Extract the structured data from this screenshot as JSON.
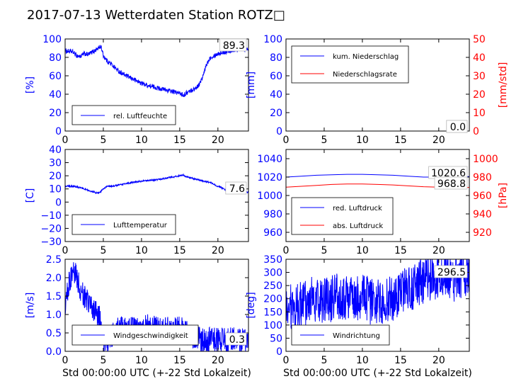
{
  "title": "2017-07-13 Wetterdaten Station ROTZ□",
  "colors": {
    "primary": "#0000ff",
    "secondary": "#ff0000",
    "text": "#000000"
  },
  "chart_data": [
    {
      "type": "line",
      "id": "humidity",
      "xlabel": "",
      "ylabel": "[%]",
      "xlim": [
        0,
        24
      ],
      "ylim": [
        0,
        100
      ],
      "xticks": [
        "0",
        "5",
        "10",
        "15",
        "20"
      ],
      "yticks": [
        "0",
        "20",
        "40",
        "60",
        "80",
        "100"
      ],
      "legend": "bottom-left",
      "value_label": "89.3",
      "noise": 2.5,
      "series": [
        {
          "name": "rel. Luftfeuchte",
          "color": "#0000ff",
          "x": [
            0,
            1,
            1.5,
            2,
            2.5,
            3,
            4,
            4.7,
            5,
            5.5,
            6,
            7,
            8,
            9,
            10,
            11,
            12,
            13,
            14,
            15,
            15.5,
            16,
            16.5,
            17,
            17.5,
            18,
            18.5,
            19,
            20,
            21,
            22,
            23,
            24
          ],
          "y": [
            87,
            86,
            82,
            81,
            84,
            83,
            88,
            92,
            82,
            76,
            73,
            65,
            60,
            56,
            52,
            49,
            47,
            45,
            43,
            41,
            39,
            42,
            44,
            46,
            50,
            58,
            72,
            80,
            84,
            86,
            88,
            89,
            89
          ]
        }
      ]
    },
    {
      "type": "line",
      "id": "precipitation",
      "xlabel": "",
      "ylabel": "[mm]",
      "ylabel_right": "[mm/std]",
      "xlim": [
        0,
        24
      ],
      "ylim": [
        0,
        100
      ],
      "ylim_right": [
        0,
        50
      ],
      "xticks": [
        "0",
        "5",
        "10",
        "15",
        "20"
      ],
      "yticks": [
        "0",
        "20",
        "40",
        "60",
        "80",
        "100"
      ],
      "yticks_right": [
        "0",
        "10",
        "20",
        "30",
        "40",
        "50"
      ],
      "legend": "top-left",
      "value_labels": [
        "0.0",
        "0.0"
      ],
      "series": [
        {
          "name": "kum. Niederschlag",
          "color": "#0000ff",
          "x": [
            0,
            24
          ],
          "y": [
            0,
            0
          ]
        },
        {
          "name": "Niederschlagsrate",
          "color": "#ff0000",
          "axis": "right",
          "x": [
            0,
            24
          ],
          "y": [
            0,
            0
          ]
        }
      ]
    },
    {
      "type": "line",
      "id": "temperature",
      "xlabel": "",
      "ylabel": "[C]",
      "xlim": [
        0,
        24
      ],
      "ylim": [
        -30,
        40
      ],
      "xticks": [
        "0",
        "5",
        "10",
        "15",
        "20"
      ],
      "yticks": [
        "−30",
        "−20",
        "−10",
        "0",
        "10",
        "20",
        "30",
        "40"
      ],
      "legend": "bottom-left",
      "value_label": "7.6",
      "noise": 0.6,
      "series": [
        {
          "name": "Lufttemperatur",
          "color": "#0000ff",
          "x": [
            0,
            1,
            2,
            3,
            4,
            4.5,
            5,
            5.5,
            6,
            7,
            8,
            9,
            10,
            11,
            12,
            13,
            14,
            15,
            15.5,
            16,
            17,
            18,
            19,
            20,
            21,
            22,
            23,
            24
          ],
          "y": [
            12,
            12,
            11,
            9,
            7,
            7,
            10,
            12,
            12,
            13,
            14,
            15,
            16,
            16.5,
            17,
            18,
            19,
            20,
            20.5,
            19,
            17.5,
            16,
            15,
            12,
            9.5,
            8.5,
            8,
            7.6
          ]
        }
      ]
    },
    {
      "type": "line",
      "id": "pressure",
      "xlabel": "",
      "ylabel": "",
      "ylabel_right": "[hPa]",
      "xlim": [
        0,
        24
      ],
      "ylim": [
        950,
        1050
      ],
      "ylim_right": [
        910,
        1010
      ],
      "xticks": [
        "0",
        "5",
        "10",
        "15",
        "20"
      ],
      "yticks": [
        "960",
        "980",
        "1000",
        "1020",
        "1040"
      ],
      "yticks_right": [
        "920",
        "940",
        "960",
        "980",
        "1000"
      ],
      "legend": "bottom-left",
      "value_labels": [
        "1020.6",
        "968.8"
      ],
      "series": [
        {
          "name": "red. Luftdruck",
          "color": "#0000ff",
          "x": [
            0,
            2,
            4,
            6,
            8,
            10,
            12,
            14,
            16,
            18,
            20,
            22,
            24
          ],
          "y": [
            1020,
            1021,
            1022,
            1022.5,
            1023,
            1023,
            1022.5,
            1022,
            1021,
            1020,
            1020,
            1020.5,
            1020.6
          ]
        },
        {
          "name": "abs. Luftdruck",
          "color": "#ff0000",
          "axis": "right",
          "x": [
            0,
            2,
            4,
            6,
            8,
            10,
            12,
            14,
            16,
            18,
            20,
            22,
            24
          ],
          "y": [
            969,
            970,
            971,
            972,
            972.5,
            972.5,
            972,
            971.5,
            970.5,
            969.5,
            969,
            968.8,
            968.8
          ]
        }
      ]
    },
    {
      "type": "line",
      "id": "wind-speed",
      "xlabel": "Std 00:00:00 UTC (+-22 Std Lokalzeit)",
      "ylabel": "[m/s]",
      "xlim": [
        0,
        24
      ],
      "ylim": [
        0,
        2.5
      ],
      "xticks": [
        "0",
        "5",
        "10",
        "15",
        "20"
      ],
      "yticks": [
        "0.0",
        "0.5",
        "1.0",
        "1.5",
        "2.0",
        "2.5"
      ],
      "legend": "bottom-left",
      "value_label": "0.3",
      "noise": 0.35,
      "series": [
        {
          "name": "Windgeschwindigkeit",
          "color": "#0000ff",
          "x": [
            0,
            0.5,
            1,
            1.5,
            2,
            3,
            4,
            4.5,
            5,
            6,
            7,
            8,
            9,
            10,
            11,
            12,
            13,
            14,
            15,
            16,
            17,
            18,
            19,
            20,
            21,
            22,
            23,
            24
          ],
          "y": [
            1.2,
            1.8,
            2.2,
            2.0,
            1.7,
            1.3,
            1.1,
            0.9,
            0.2,
            0.4,
            0.6,
            0.6,
            0.6,
            0.6,
            0.7,
            0.6,
            0.6,
            0.6,
            0.6,
            0.5,
            0.4,
            0.3,
            0.3,
            0.3,
            0.3,
            0.3,
            0.3,
            0.3
          ]
        }
      ]
    },
    {
      "type": "line",
      "id": "wind-direction",
      "xlabel": "Std 00:00:00 UTC (+-22 Std Lokalzeit)",
      "ylabel": "[deg]",
      "xlim": [
        0,
        24
      ],
      "ylim": [
        0,
        350
      ],
      "xticks": [
        "0",
        "5",
        "10",
        "15",
        "20"
      ],
      "yticks": [
        "0",
        "50",
        "100",
        "150",
        "200",
        "250",
        "300",
        "350"
      ],
      "legend": "bottom-left",
      "value_label": "296.5",
      "noise": 90,
      "series": [
        {
          "name": "Windrichtung",
          "color": "#0000ff",
          "x": [
            0,
            1,
            2,
            3,
            4,
            5,
            6,
            7,
            8,
            9,
            10,
            11,
            12,
            13,
            14,
            15,
            16,
            17,
            18,
            19,
            20,
            21,
            22,
            23,
            24
          ],
          "y": [
            180,
            160,
            180,
            190,
            200,
            190,
            200,
            210,
            200,
            200,
            210,
            190,
            190,
            190,
            200,
            210,
            240,
            250,
            270,
            280,
            280,
            280,
            270,
            290,
            296
          ]
        }
      ]
    }
  ]
}
